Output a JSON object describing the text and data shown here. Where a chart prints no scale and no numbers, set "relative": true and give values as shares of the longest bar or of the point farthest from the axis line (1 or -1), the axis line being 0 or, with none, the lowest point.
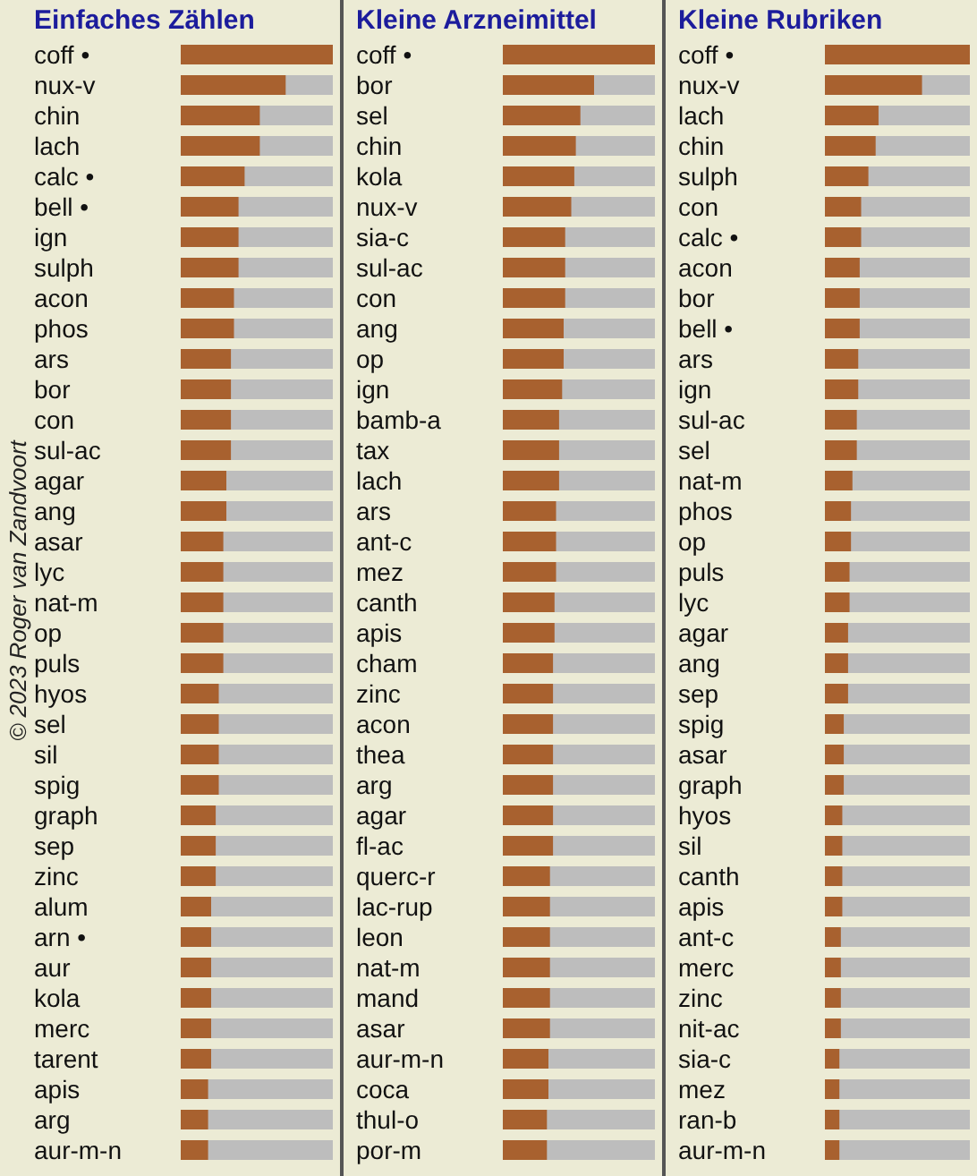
{
  "chart_data": [
    {
      "type": "bar",
      "orientation": "horizontal",
      "relative": true,
      "title": "Einfaches Zählen",
      "color": "#a8612f",
      "annotations": [
        "© 2023 Roger van Zandvoort"
      ],
      "categories": [
        "coff •",
        "nux-v",
        "chin",
        "lach",
        "calc •",
        "bell •",
        "ign",
        "sulph",
        "acon",
        "phos",
        "ars",
        "bor",
        "con",
        "sul-ac",
        "agar",
        "ang",
        "asar",
        "lyc",
        "nat-m",
        "op",
        "puls",
        "hyos",
        "sel",
        "sil",
        "spig",
        "graph",
        "sep",
        "zinc",
        "alum",
        "arn •",
        "aur",
        "kola",
        "merc",
        "tarent",
        "apis",
        "arg",
        "aur-m-n"
      ],
      "values": [
        1,
        0.69,
        0.52,
        0.52,
        0.42,
        0.38,
        0.38,
        0.38,
        0.35,
        0.35,
        0.33,
        0.33,
        0.33,
        0.33,
        0.3,
        0.3,
        0.28,
        0.28,
        0.28,
        0.28,
        0.28,
        0.25,
        0.25,
        0.25,
        0.25,
        0.23,
        0.23,
        0.23,
        0.2,
        0.2,
        0.2,
        0.2,
        0.2,
        0.2,
        0.18,
        0.18,
        0.18
      ]
    },
    {
      "type": "bar",
      "orientation": "horizontal",
      "relative": true,
      "title": "Kleine Arzneimittel",
      "color": "#a8612f",
      "categories": [
        "coff •",
        "bor",
        "sel",
        "chin",
        "kola",
        "nux-v",
        "sia-c",
        "sul-ac",
        "con",
        "ang",
        "op",
        "ign",
        "bamb-a",
        "tax",
        "lach",
        "ars",
        "ant-c",
        "mez",
        "canth",
        "apis",
        "cham",
        "zinc",
        "acon",
        "thea",
        "arg",
        "agar",
        "fl-ac",
        "querc-r",
        "lac-rup",
        "leon",
        "nat-m",
        "mand",
        "asar",
        "aur-m-n",
        "coca",
        "thul-o",
        "por-m"
      ],
      "values": [
        1,
        0.6,
        0.51,
        0.48,
        0.47,
        0.45,
        0.41,
        0.41,
        0.41,
        0.4,
        0.4,
        0.39,
        0.37,
        0.37,
        0.37,
        0.35,
        0.35,
        0.35,
        0.34,
        0.34,
        0.33,
        0.33,
        0.33,
        0.33,
        0.33,
        0.33,
        0.33,
        0.31,
        0.31,
        0.31,
        0.31,
        0.31,
        0.31,
        0.3,
        0.3,
        0.29,
        0.29
      ]
    },
    {
      "type": "bar",
      "orientation": "horizontal",
      "relative": true,
      "title": "Kleine Rubriken",
      "color": "#a8612f",
      "categories": [
        "coff •",
        "nux-v",
        "lach",
        "chin",
        "sulph",
        "con",
        "calc •",
        "acon",
        "bor",
        "bell •",
        "ars",
        "ign",
        "sul-ac",
        "sel",
        "nat-m",
        "phos",
        "op",
        "puls",
        "lyc",
        "agar",
        "ang",
        "sep",
        "spig",
        "asar",
        "graph",
        "hyos",
        "sil",
        "canth",
        "apis",
        "ant-c",
        "merc",
        "zinc",
        "nit-ac",
        "sia-c",
        "mez",
        "ran-b",
        "aur-m-n"
      ],
      "values": [
        1,
        0.67,
        0.37,
        0.35,
        0.3,
        0.25,
        0.25,
        0.24,
        0.24,
        0.24,
        0.23,
        0.23,
        0.22,
        0.22,
        0.19,
        0.18,
        0.18,
        0.17,
        0.17,
        0.16,
        0.16,
        0.16,
        0.13,
        0.13,
        0.13,
        0.12,
        0.12,
        0.12,
        0.12,
        0.11,
        0.11,
        0.11,
        0.11,
        0.1,
        0.1,
        0.1,
        0.1
      ]
    }
  ]
}
